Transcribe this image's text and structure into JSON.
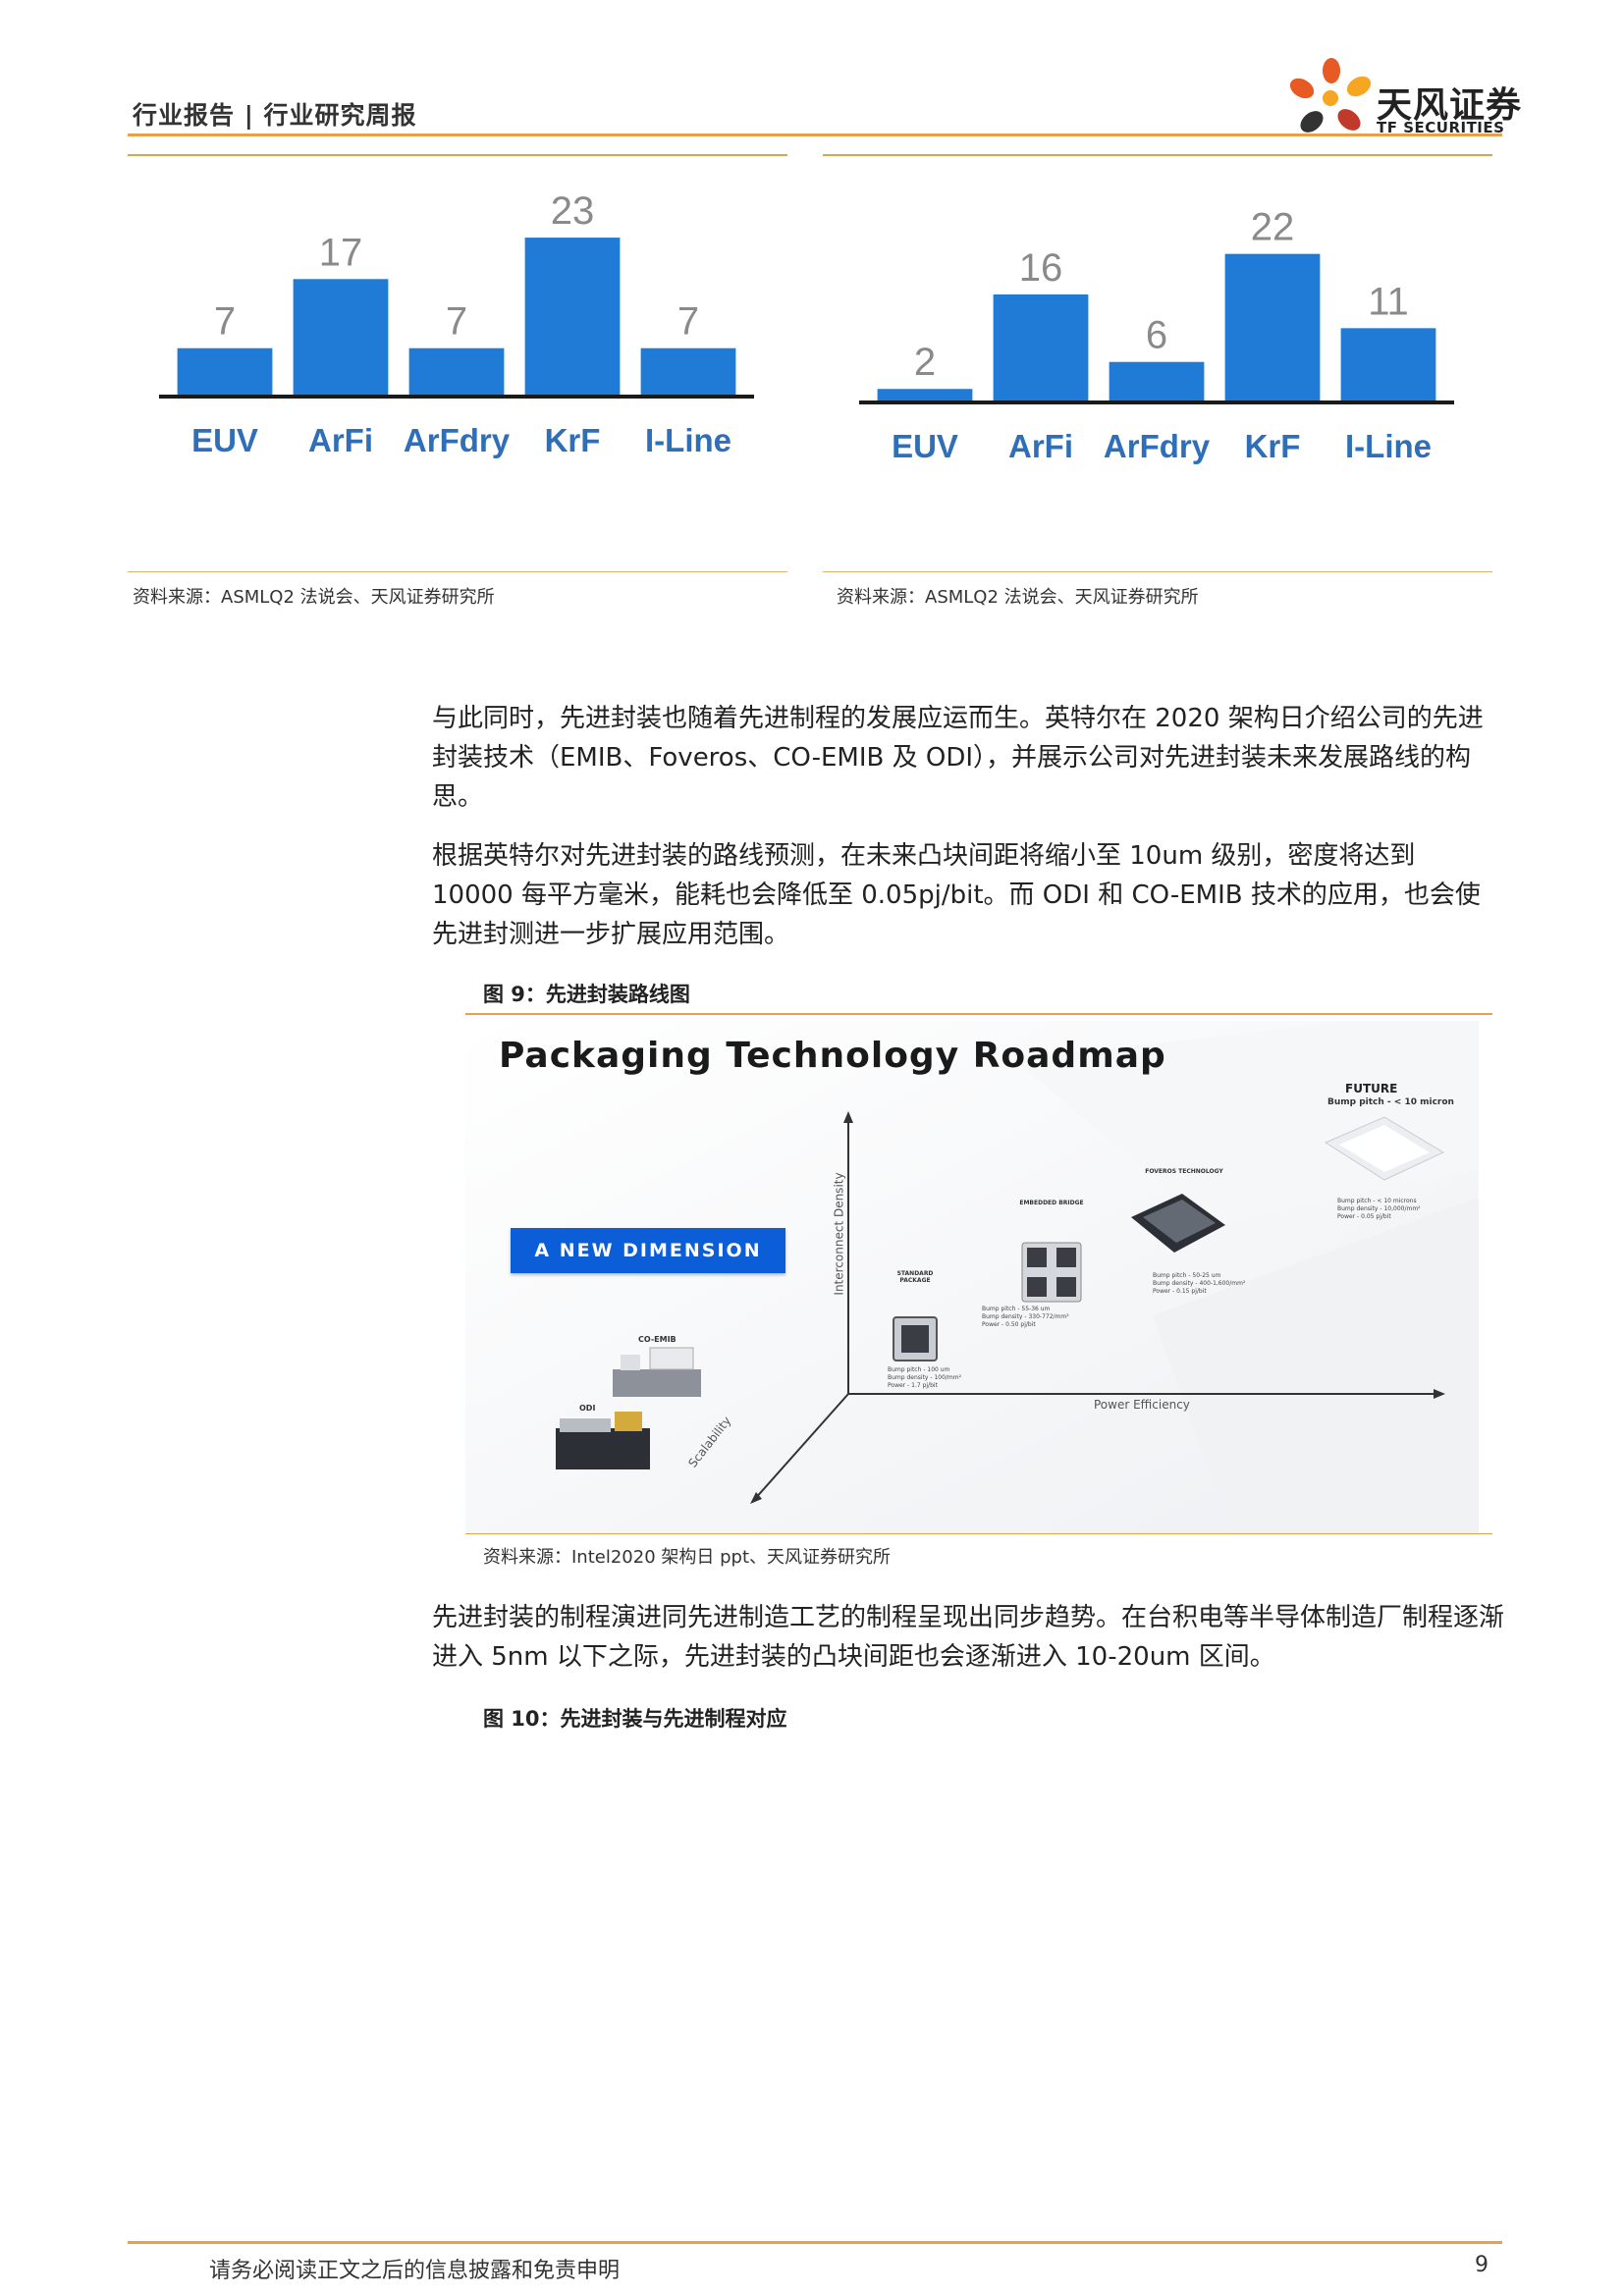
{
  "header": {
    "title": "行业报告 | 行业研究周报",
    "logo_cn": "天风证券",
    "logo_en": "TF SECURITIES",
    "logo_colors": [
      "#e85a24",
      "#f6a623",
      "#c0392b",
      "#333333"
    ]
  },
  "chart_data": [
    {
      "type": "bar",
      "categories": [
        "EUV",
        "ArFi",
        "ArFdry",
        "KrF",
        "I-Line"
      ],
      "values": [
        7,
        17,
        7,
        23,
        7
      ],
      "bar_color": "#1f7bd6",
      "ylim": [
        0,
        25
      ],
      "title": "",
      "xlabel": "",
      "ylabel": ""
    },
    {
      "type": "bar",
      "categories": [
        "EUV",
        "ArFi",
        "ArFdry",
        "KrF",
        "I-Line"
      ],
      "values": [
        2,
        16,
        6,
        22,
        11
      ],
      "bar_color": "#1f7bd6",
      "ylim": [
        0,
        25
      ],
      "title": "",
      "xlabel": "",
      "ylabel": ""
    }
  ],
  "charts": {
    "left_source": "资料来源：ASMLQ2 法说会、天风证券研究所",
    "right_source": "资料来源：ASMLQ2 法说会、天风证券研究所"
  },
  "body": {
    "para1": "与此同时，先进封装也随着先进制程的发展应运而生。英特尔在 2020 架构日介绍公司的先进封装技术（EMIB、Foveros、CO-EMIB 及 ODI），并展示公司对先进封装未来发展路线的构思。",
    "para2": "根据英特尔对先进封装的路线预测，在未来凸块间距将缩小至 10um 级别，密度将达到 10000 每平方毫米，能耗也会降低至 0.05pj/bit。而 ODI 和 CO-EMIB 技术的应用，也会使先进封测进一步扩展应用范围。",
    "para3": "先进封装的制程演进同先进制造工艺的制程呈现出同步趋势。在台积电等半导体制造厂制程逐渐进入 5nm 以下之际，先进封装的凸块间距也会逐渐进入 10-20um 区间。"
  },
  "figure9": {
    "title": "图 9：先进封装路线图",
    "source": "资料来源：Intel2020 架构日 ppt、天风证券研究所",
    "image": {
      "title": "Packaging Technology Roadmap",
      "banner": "A NEW DIMENSION",
      "axis_y": "Interconnect Density",
      "axis_x": "Power Efficiency",
      "axis_z": "Scalability",
      "standard_label": "STANDARD PACKAGE",
      "standard_specs": [
        "Bump pitch - 100 um",
        "Bump density - 100/mm²",
        "Power - 1.7 pj/bit"
      ],
      "emb_label": "EMBEDDED BRIDGE",
      "emb_specs": [
        "Bump pitch - 55-36 um",
        "Bump density - 330-772/mm²",
        "Power - 0.50 pj/bit"
      ],
      "foveros_label": "FOVEROS TECHNOLOGY",
      "foveros_specs": [
        "Bump pitch - 50-25 um",
        "Bump density - 400-1,600/mm²",
        "Power - 0.15 pj/bit"
      ],
      "future_label": "FUTURE",
      "future_sub": "Bump pitch - < 10 micron",
      "future_specs": [
        "Bump pitch - < 10 microns",
        "Bump density - 10,000/mm²",
        "Power - 0.05 pj/bit"
      ],
      "coemib_label": "CO-EMIB",
      "odi_label": "ODI"
    }
  },
  "figure10": {
    "title": "图 10：先进封装与先进制程对应"
  },
  "footer": {
    "disclaimer": "请务必阅读正文之后的信息披露和免责申明",
    "page": "9"
  }
}
